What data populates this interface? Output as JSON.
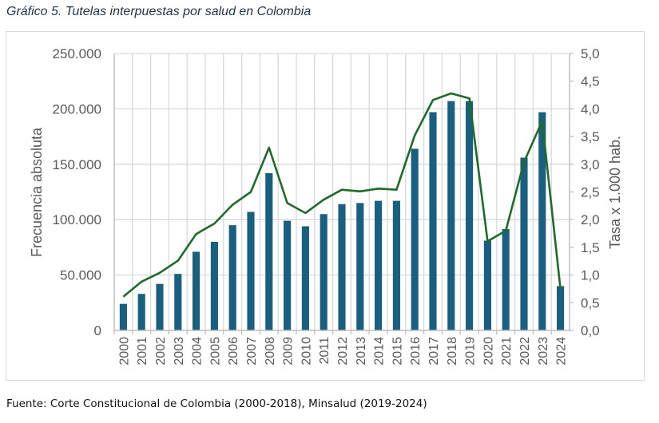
{
  "title": "Gráfico 5.  Tutelas interpuestas por salud en Colombia",
  "source": "Fuente: Corte Constitucional de Colombia (2000-2018), Minsalud (2019-2024)",
  "colors": {
    "bars": "#185f80",
    "line": "#1e6b2a",
    "grid": "#d9d9d9",
    "text": "#595959",
    "title": "#1f3350"
  },
  "chart_data": {
    "type": "bar+line",
    "title": "Gráfico 5.  Tutelas interpuestas por salud en Colombia",
    "categories": [
      "2000",
      "2001",
      "2002",
      "2003",
      "2004",
      "2005",
      "2006",
      "2007",
      "2008",
      "2009",
      "2010",
      "2011",
      "2012",
      "2013",
      "2014",
      "2015",
      "2016",
      "2017",
      "2018",
      "2019",
      "2020",
      "2021",
      "2022",
      "2023",
      "2024"
    ],
    "series": [
      {
        "name": "Frecuencia absoluta",
        "type": "bar",
        "axis": "left",
        "values": [
          24000,
          33000,
          42000,
          51000,
          71000,
          80000,
          95000,
          107000,
          142000,
          99000,
          94000,
          105000,
          114000,
          115000,
          117000,
          117000,
          164000,
          197000,
          207000,
          207000,
          81000,
          91500,
          156000,
          197000,
          40000
        ]
      },
      {
        "name": "Tasa x 1.000 hab.",
        "type": "line",
        "axis": "right",
        "values": [
          0.61,
          0.88,
          1.04,
          1.26,
          1.74,
          1.93,
          2.27,
          2.5,
          3.3,
          2.3,
          2.12,
          2.36,
          2.54,
          2.51,
          2.56,
          2.54,
          3.52,
          4.16,
          4.28,
          4.19,
          1.61,
          1.8,
          3.04,
          3.78,
          0.75
        ]
      }
    ],
    "ylabel": "Frecuencia absoluta",
    "y2label": "Tasa  x 1.000 hab.",
    "ylim": [
      0,
      250000
    ],
    "y2lim": [
      0,
      5
    ],
    "yticks": [
      0,
      50000,
      100000,
      150000,
      200000,
      250000
    ],
    "ytick_labels": [
      "0",
      "50.000",
      "100.000",
      "150.000",
      "200.000",
      "250.000"
    ],
    "y2ticks": [
      0,
      0.5,
      1,
      1.5,
      2,
      2.5,
      3,
      3.5,
      4,
      4.5,
      5
    ],
    "y2tick_labels": [
      "0,0",
      "0,5",
      "1,0",
      "1,5",
      "2,0",
      "2,5",
      "3,0",
      "3,5",
      "4,0",
      "4,5",
      "5,0"
    ],
    "grid": true,
    "legend": "none"
  }
}
